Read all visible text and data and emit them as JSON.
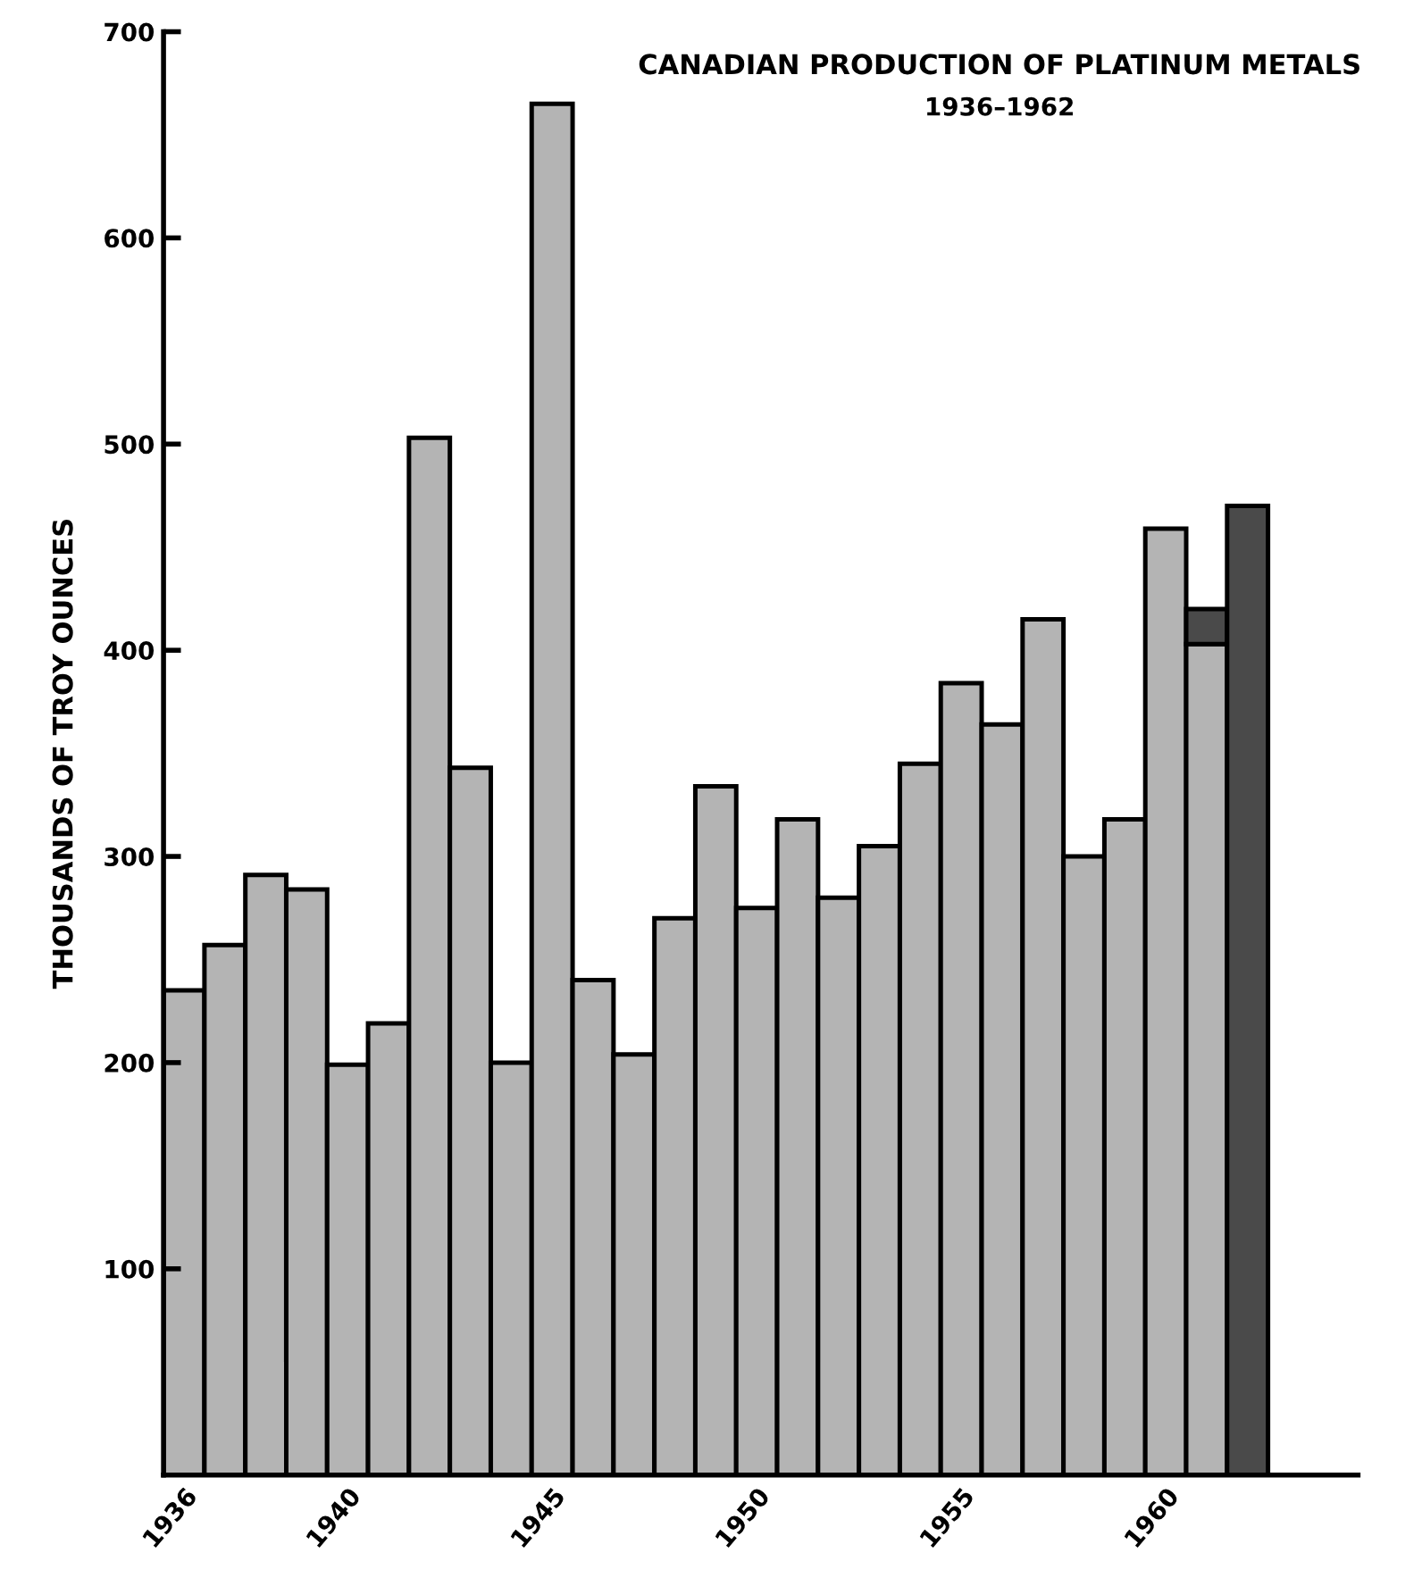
{
  "chart_data": {
    "type": "bar",
    "title": "CANADIAN PRODUCTION OF PLATINUM METALS",
    "subtitle": "1936–1962",
    "ylabel": "THOUSANDS OF TROY OUNCES",
    "categories": [
      "1936",
      null,
      null,
      null,
      "1940",
      null,
      null,
      null,
      null,
      "1945",
      null,
      null,
      null,
      null,
      "1950",
      null,
      null,
      null,
      null,
      "1955",
      null,
      null,
      null,
      null,
      "1960",
      null,
      null
    ],
    "stacked": true,
    "series": [
      {
        "color": "#b4b4b4",
        "values": [
          235,
          257,
          291,
          284,
          199,
          219,
          503,
          343,
          200,
          665,
          240,
          204,
          270,
          334,
          275,
          318,
          280,
          305,
          345,
          384,
          364,
          415,
          300,
          318,
          459,
          403,
          null
        ]
      },
      {
        "color": "#4a4a4a",
        "values": [
          null,
          null,
          null,
          null,
          null,
          null,
          null,
          null,
          null,
          null,
          null,
          null,
          null,
          null,
          null,
          null,
          null,
          null,
          null,
          null,
          null,
          null,
          null,
          null,
          null,
          17,
          470
        ]
      }
    ],
    "ylim": [
      0,
      700
    ],
    "yticks": [
      100,
      200,
      300,
      400,
      500,
      600,
      700
    ],
    "grid": false,
    "legend": false
  }
}
